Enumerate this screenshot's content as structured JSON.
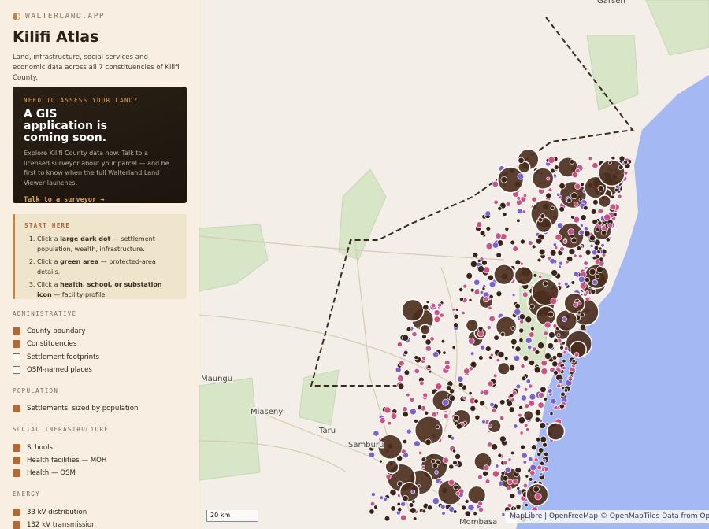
{
  "sidebar": {
    "brand": "WALTERLAND.APP",
    "title": "Kilifi Atlas",
    "description": "Land, infrastructure, social services and economic data across all 7 constituencies of Kilifi County.",
    "cta": {
      "eyebrow": "NEED TO ASSESS YOUR LAND?",
      "heading": "A GIS application is coming soon.",
      "body": "Explore Kilifi County data now. Talk to a licensed surveyor about your parcel — and be first to know when the full Walterland Land Viewer launches.",
      "link": "Talk to a surveyor →"
    },
    "start": {
      "heading": "START HERE",
      "steps": [
        {
          "pre": "Click a ",
          "bold": "large dark dot",
          "post": " — settlement population, wealth, infrastructure."
        },
        {
          "pre": "Click a ",
          "bold": "green area",
          "post": " — protected-area details."
        },
        {
          "pre": "Click a ",
          "bold": "health, school, or substation icon",
          "post": " — facility profile."
        }
      ]
    },
    "layers": [
      {
        "heading": "ADMINISTRATIVE",
        "items": [
          {
            "label": "County boundary",
            "checked": true
          },
          {
            "label": "Constituencies",
            "checked": true
          },
          {
            "label": "Settlement footprints",
            "checked": false
          },
          {
            "label": "OSM-named places",
            "checked": false
          }
        ]
      },
      {
        "heading": "POPULATION",
        "items": [
          {
            "label": "Settlements, sized by population",
            "checked": true
          }
        ]
      },
      {
        "heading": "SOCIAL INFRASTRUCTURE",
        "items": [
          {
            "label": "Schools",
            "checked": true
          },
          {
            "label": "Health facilities — MOH",
            "checked": true
          },
          {
            "label": "Health — OSM",
            "checked": true
          }
        ]
      },
      {
        "heading": "ENERGY",
        "items": [
          {
            "label": "33 kV distribution",
            "checked": true
          },
          {
            "label": "132 kV transmission",
            "checked": true
          }
        ]
      }
    ]
  },
  "map": {
    "places": [
      "Garsen",
      "Maungu",
      "Miasenyi",
      "Taru",
      "Samburu",
      "Mombasa"
    ],
    "scale": "20 km",
    "attribution": "MapLibre | OpenFreeMap © OpenMapTiles Data from OpenStreetMap"
  }
}
